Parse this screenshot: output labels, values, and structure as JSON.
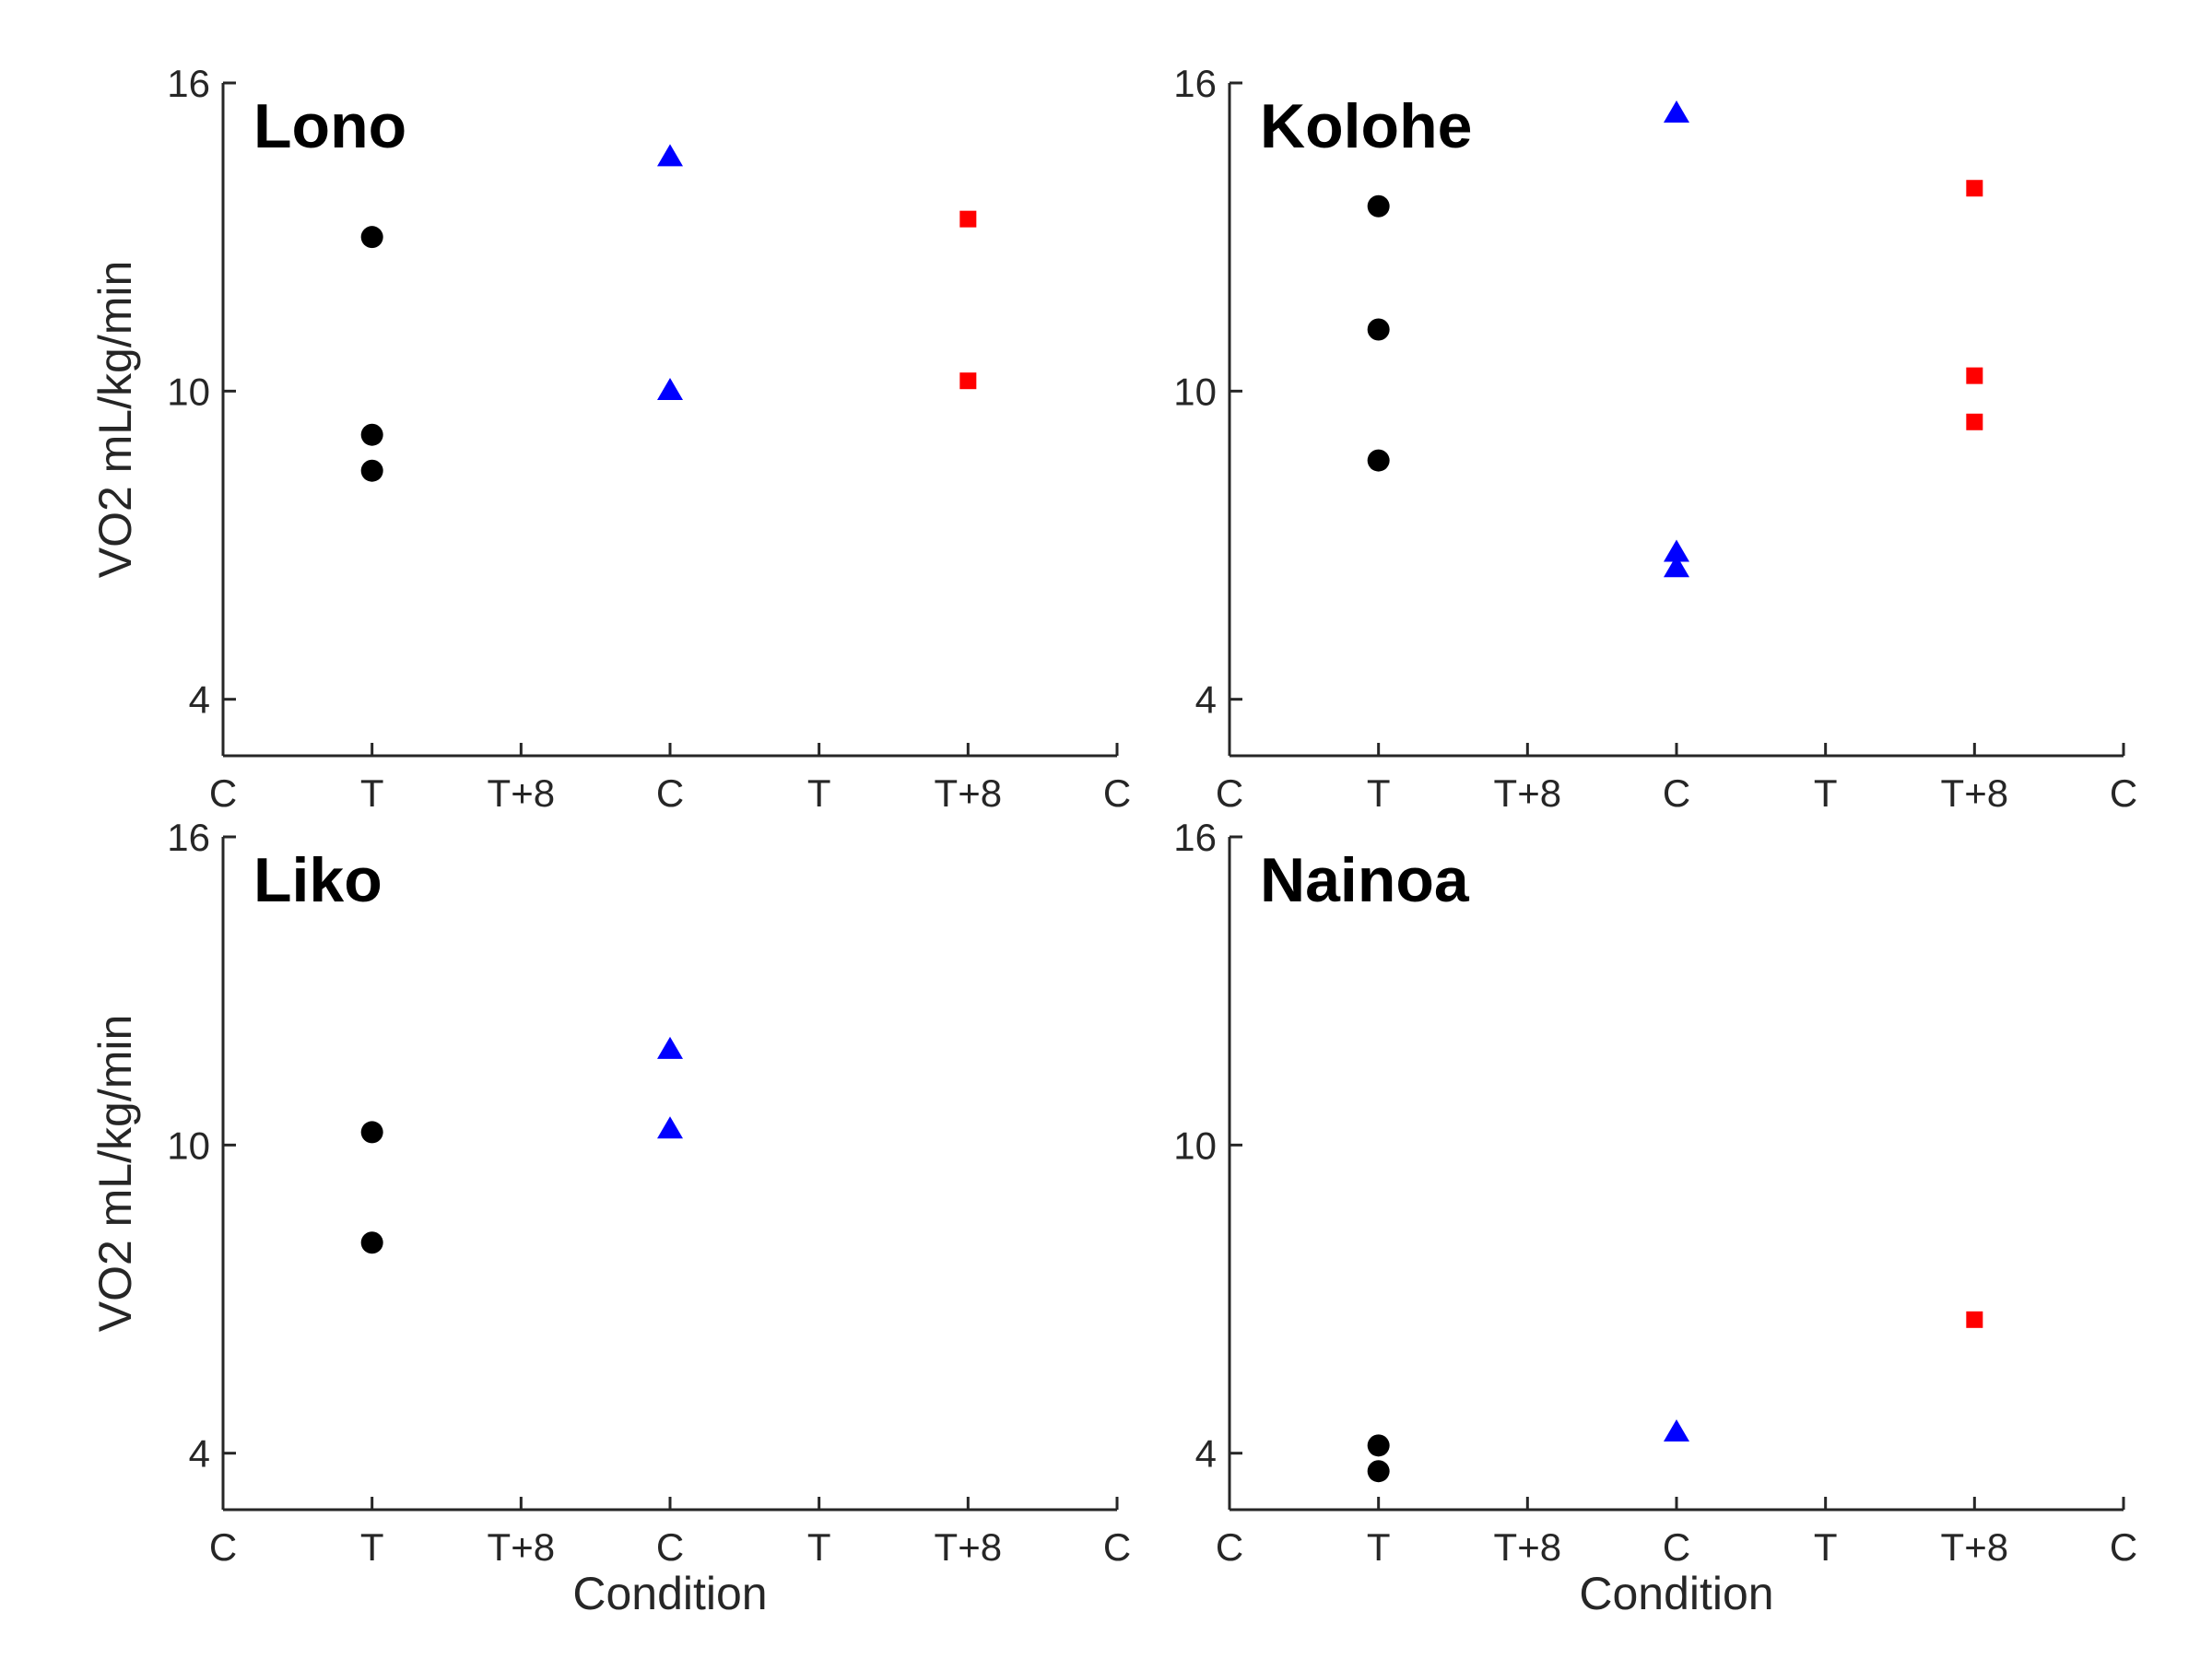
{
  "chart_data": [
    {
      "type": "scatter",
      "title": "Lono",
      "ylabel": "VO2 mL/kg/min",
      "xlabel": "",
      "categories": [
        "C",
        "T",
        "T+8",
        "C",
        "T",
        "T+8",
        "C"
      ],
      "yticks": [
        4,
        10,
        16
      ],
      "ylim": [
        2.9,
        16
      ],
      "series": [
        {
          "marker": "circle",
          "color": "#000000",
          "points": [
            {
              "x": "T",
              "y": 13.0
            },
            {
              "x": "T",
              "y": 9.15
            },
            {
              "x": "T",
              "y": 8.45
            }
          ]
        },
        {
          "marker": "triangle",
          "color": "#0000ff",
          "points": [
            {
              "x": "C",
              "y": 14.55
            },
            {
              "x": "C",
              "y": 10.0
            }
          ]
        },
        {
          "marker": "square",
          "color": "#ff0000",
          "points": [
            {
              "x": "T+8",
              "y": 13.35
            },
            {
              "x": "T+8",
              "y": 10.2
            }
          ]
        }
      ]
    },
    {
      "type": "scatter",
      "title": "Kolohe",
      "ylabel": "",
      "xlabel": "",
      "categories": [
        "C",
        "T",
        "T+8",
        "C",
        "T",
        "T+8",
        "C"
      ],
      "yticks": [
        4,
        10,
        16
      ],
      "ylim": [
        2.9,
        16
      ],
      "series": [
        {
          "marker": "circle",
          "color": "#000000",
          "points": [
            {
              "x": "T",
              "y": 13.6
            },
            {
              "x": "T",
              "y": 11.2
            },
            {
              "x": "T",
              "y": 8.65
            }
          ]
        },
        {
          "marker": "triangle",
          "color": "#0000ff",
          "points": [
            {
              "x": "C",
              "y": 15.4
            },
            {
              "x": "C",
              "y": 6.85
            },
            {
              "x": "C",
              "y": 6.55
            }
          ]
        },
        {
          "marker": "square",
          "color": "#ff0000",
          "points": [
            {
              "x": "T+8",
              "y": 13.95
            },
            {
              "x": "T+8",
              "y": 10.3
            },
            {
              "x": "T+8",
              "y": 9.4
            }
          ]
        }
      ]
    },
    {
      "type": "scatter",
      "title": "Liko",
      "ylabel": "VO2 mL/kg/min",
      "xlabel": "Condition",
      "categories": [
        "C",
        "T",
        "T+8",
        "C",
        "T",
        "T+8",
        "C"
      ],
      "yticks": [
        4,
        10,
        16
      ],
      "ylim": [
        2.9,
        16
      ],
      "series": [
        {
          "marker": "circle",
          "color": "#000000",
          "points": [
            {
              "x": "T",
              "y": 10.25
            },
            {
              "x": "T",
              "y": 8.1
            }
          ]
        },
        {
          "marker": "triangle",
          "color": "#0000ff",
          "points": [
            {
              "x": "C",
              "y": 11.85
            },
            {
              "x": "C",
              "y": 10.3
            }
          ]
        },
        {
          "marker": "square",
          "color": "#ff0000",
          "points": []
        }
      ]
    },
    {
      "type": "scatter",
      "title": "Nainoa",
      "ylabel": "",
      "xlabel": "Condition",
      "categories": [
        "C",
        "T",
        "T+8",
        "C",
        "T",
        "T+8",
        "C"
      ],
      "yticks": [
        4,
        10,
        16
      ],
      "ylim": [
        2.9,
        16
      ],
      "series": [
        {
          "marker": "circle",
          "color": "#000000",
          "points": [
            {
              "x": "T",
              "y": 4.15
            },
            {
              "x": "T",
              "y": 3.65
            }
          ]
        },
        {
          "marker": "triangle",
          "color": "#0000ff",
          "points": [
            {
              "x": "C",
              "y": 4.4
            }
          ]
        },
        {
          "marker": "square",
          "color": "#ff0000",
          "points": [
            {
              "x": "T+8",
              "y": 6.6
            }
          ]
        }
      ]
    }
  ]
}
